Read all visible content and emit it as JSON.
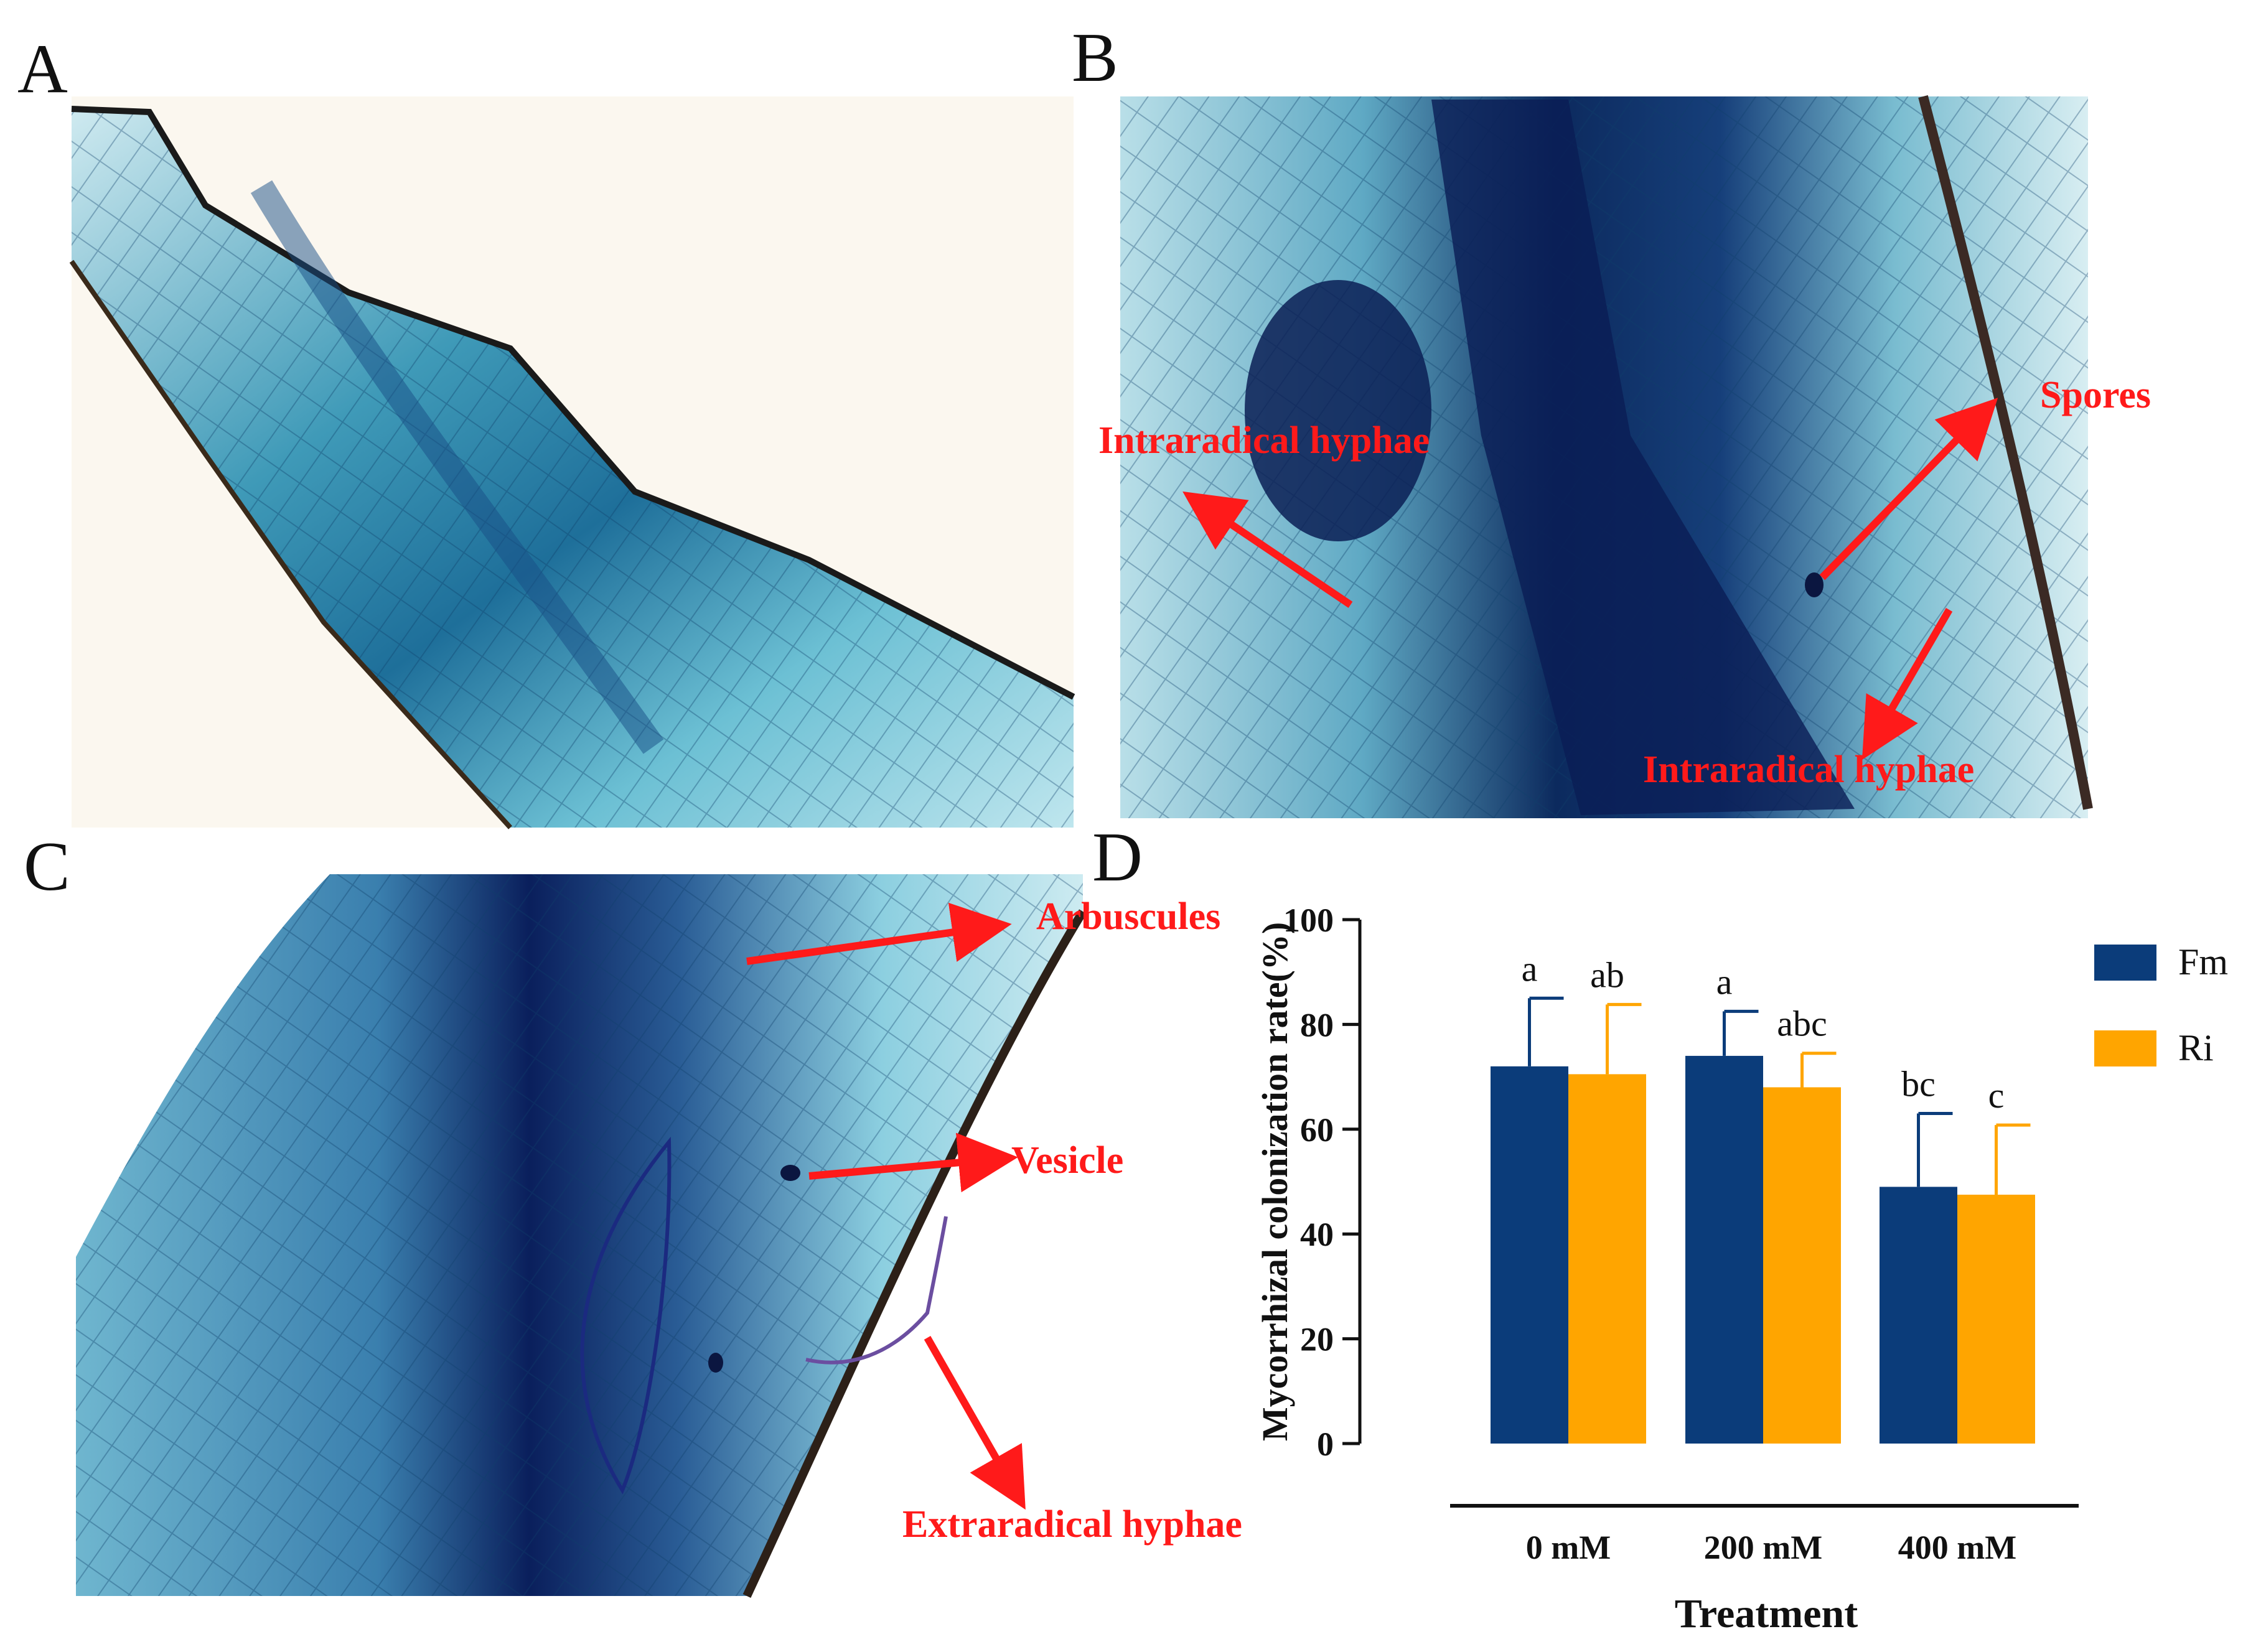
{
  "panels": {
    "a": {
      "letter": "A"
    },
    "b": {
      "letter": "B",
      "labels": [
        "Intraradical hyphae",
        "Spores",
        "Intraradical hyphae"
      ]
    },
    "c": {
      "letter": "C",
      "labels": [
        "Arbuscules",
        "Vesicle",
        "Extraradical hyphae"
      ]
    },
    "d": {
      "letter": "D"
    }
  },
  "colors": {
    "fm": "#0b3c7a",
    "ri": "#ffa500",
    "annotation": "#ff1a1a",
    "stain_dark": "#0a1f5c",
    "stain_light": "#9fd3e0"
  },
  "chart_data": {
    "type": "bar",
    "categories": [
      "0 mM",
      "200 mM",
      "400 mM"
    ],
    "series": [
      {
        "name": "Fm",
        "values": [
          72,
          74,
          49
        ],
        "errors": [
          13,
          8.5,
          14
        ],
        "letters": [
          "a",
          "a",
          "bc"
        ]
      },
      {
        "name": "Ri",
        "values": [
          70.5,
          68,
          47.5
        ],
        "errors": [
          13.3,
          6.5,
          13.3
        ],
        "letters": [
          "ab",
          "abc",
          "c"
        ]
      }
    ],
    "xlabel": "Treatment",
    "ylabel": "Mycorrhizal colonization rate(%)",
    "ylim": [
      0,
      100
    ],
    "yticks": [
      0,
      20,
      40,
      60,
      80,
      100
    ],
    "legend_position": "right",
    "grid": false
  }
}
